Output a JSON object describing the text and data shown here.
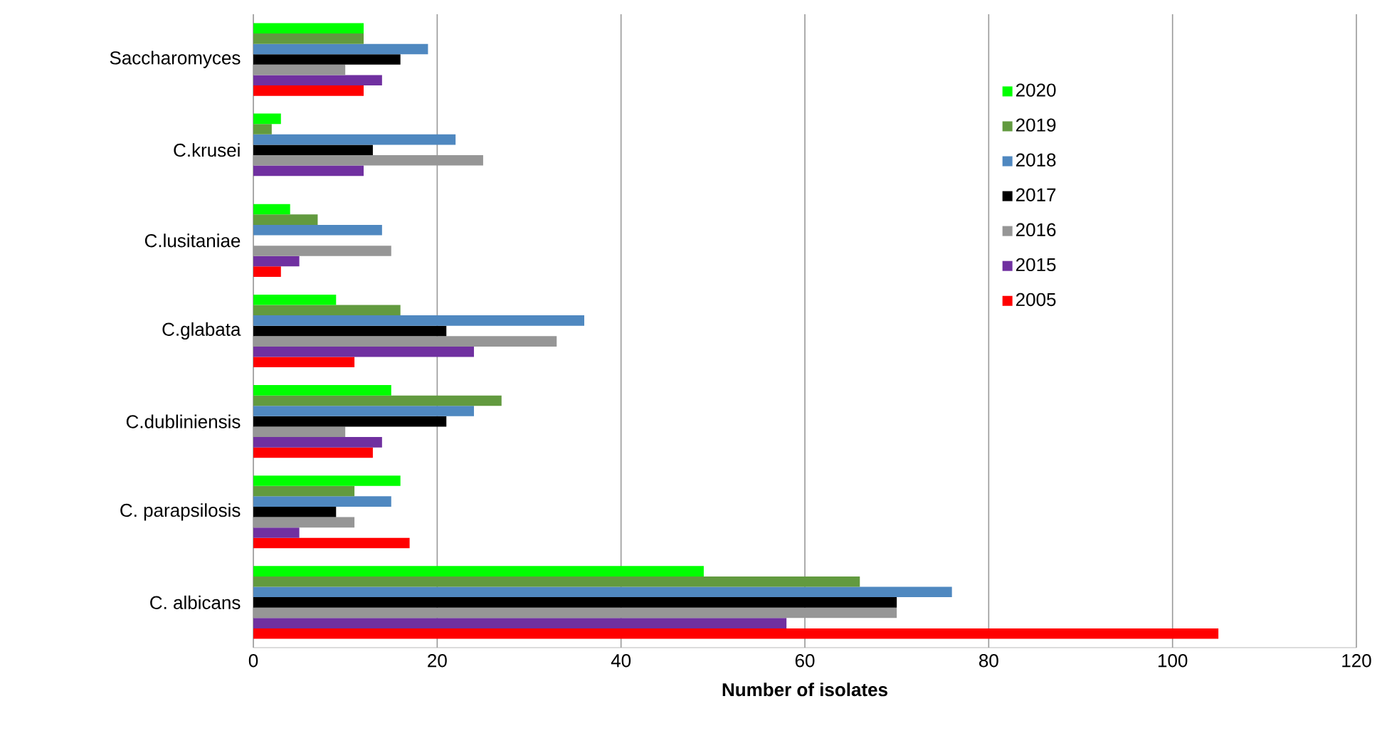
{
  "chart_data": {
    "type": "bar",
    "orientation": "horizontal",
    "xlabel": "Number of isolates",
    "categories": [
      "Saccharomyces",
      "C.krusei",
      "C.lusitaniae",
      "C.glabata",
      "C.dubliniensis",
      "C. parapsilosis",
      "C. albicans"
    ],
    "series": [
      {
        "name": "2020",
        "color": "#00ff00",
        "values": [
          12,
          3,
          4,
          9,
          15,
          16,
          49
        ]
      },
      {
        "name": "2019",
        "color": "#629a3f",
        "values": [
          12,
          2,
          7,
          16,
          27,
          11,
          66
        ]
      },
      {
        "name": "2018",
        "color": "#4f88c0",
        "values": [
          19,
          22,
          14,
          36,
          24,
          15,
          76
        ]
      },
      {
        "name": "2017",
        "color": "#000000",
        "values": [
          16,
          13,
          0,
          21,
          21,
          9,
          70
        ]
      },
      {
        "name": "2016",
        "color": "#969696",
        "values": [
          10,
          25,
          15,
          33,
          10,
          11,
          70
        ]
      },
      {
        "name": "2015",
        "color": "#7030a0",
        "values": [
          14,
          12,
          5,
          24,
          14,
          5,
          58
        ]
      },
      {
        "name": "2005",
        "color": "#ff0000",
        "values": [
          12,
          0,
          3,
          11,
          13,
          17,
          105
        ]
      }
    ],
    "xlim": [
      0,
      120
    ],
    "xticks": [
      0,
      20,
      40,
      60,
      80,
      100,
      120
    ],
    "grid": "x",
    "legend": "right"
  }
}
